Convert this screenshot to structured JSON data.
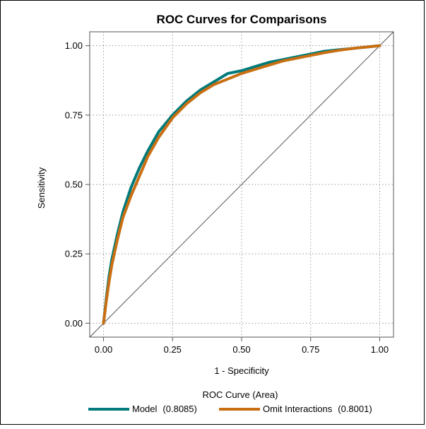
{
  "chart_data": {
    "type": "line",
    "title": "ROC Curves for Comparisons",
    "xlabel": "1 - Specificity",
    "ylabel": "Sensitivity",
    "xlim": [
      -0.05,
      1.05
    ],
    "ylim": [
      -0.05,
      1.05
    ],
    "xticks": [
      "0.00",
      "0.25",
      "0.50",
      "0.75",
      "1.00"
    ],
    "yticks": [
      "0.00",
      "0.25",
      "0.50",
      "0.75",
      "1.00"
    ],
    "xtick_values": [
      0,
      0.25,
      0.5,
      0.75,
      1.0
    ],
    "ytick_values": [
      0,
      0.25,
      0.5,
      0.75,
      1.0
    ],
    "grid": true,
    "legend": {
      "title": "ROC Curve (Area)",
      "placement": "bottom"
    },
    "series": [
      {
        "name": "Model",
        "area": "(0.8085)",
        "color": "#007a7a",
        "x": [
          0,
          0.01,
          0.02,
          0.03,
          0.05,
          0.07,
          0.1,
          0.13,
          0.16,
          0.2,
          0.25,
          0.3,
          0.35,
          0.4,
          0.45,
          0.5,
          0.55,
          0.6,
          0.65,
          0.7,
          0.75,
          0.8,
          0.85,
          0.9,
          0.95,
          1.0
        ],
        "y": [
          0,
          0.09,
          0.17,
          0.23,
          0.32,
          0.4,
          0.49,
          0.56,
          0.62,
          0.69,
          0.75,
          0.8,
          0.84,
          0.87,
          0.9,
          0.91,
          0.925,
          0.94,
          0.95,
          0.96,
          0.97,
          0.98,
          0.985,
          0.99,
          0.995,
          1.0
        ]
      },
      {
        "name": "Omit Interactions",
        "area": "(0.8001)",
        "color": "#c96f12",
        "x": [
          0,
          0.01,
          0.02,
          0.03,
          0.05,
          0.07,
          0.1,
          0.13,
          0.16,
          0.2,
          0.25,
          0.3,
          0.35,
          0.4,
          0.45,
          0.5,
          0.55,
          0.6,
          0.65,
          0.7,
          0.75,
          0.8,
          0.85,
          0.9,
          0.95,
          1.0
        ],
        "y": [
          0,
          0.08,
          0.15,
          0.21,
          0.3,
          0.38,
          0.46,
          0.53,
          0.6,
          0.67,
          0.74,
          0.79,
          0.83,
          0.86,
          0.88,
          0.9,
          0.915,
          0.93,
          0.945,
          0.955,
          0.965,
          0.975,
          0.983,
          0.99,
          0.995,
          1.0
        ]
      }
    ],
    "reference_line": {
      "x": [
        -0.05,
        1.05
      ],
      "y": [
        -0.05,
        1.05
      ],
      "color": "#555555"
    }
  }
}
